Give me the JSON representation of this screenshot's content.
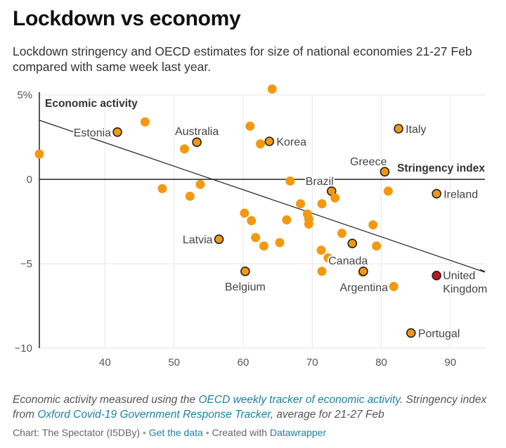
{
  "header": {
    "title": "Lockdown vs economy",
    "subtitle": "Lockdown stringency and OECD estimates for size of national economies 21-27 Feb compared with same week last year."
  },
  "notes": {
    "part1": "Economic activity measured using the ",
    "link1": "OECD weekly tracker of economic activity",
    "part2": ". Stringency index from ",
    "link2": "Oxford Covid-19 Government Response Tracker",
    "part3": ", average for 21-27 Feb"
  },
  "footer": {
    "credit": "Chart: The Spectator (I5DBy)",
    "sep1": "•",
    "get_data": "Get the data",
    "sep2": "•",
    "created_with_prefix": "Created with ",
    "datawrapper": "Datawrapper"
  },
  "colors": {
    "point_fill": "#f29911",
    "highlight_fill": "#c0161c",
    "outline": "#222222",
    "grid": "#e6e6e6",
    "link": "#1d81a2"
  },
  "chart_data": {
    "type": "scatter",
    "title": "Lockdown vs economy",
    "xlabel": "Stringency index",
    "ylabel": "Economic activity",
    "xlim": [
      30.5,
      95
    ],
    "ylim": [
      -10,
      5
    ],
    "xticks": [
      40,
      50,
      60,
      70,
      80,
      90
    ],
    "yticks": [
      {
        "value": 5,
        "label": "5%"
      },
      {
        "value": 0,
        "label": "0"
      },
      {
        "value": -5,
        "label": "−5"
      },
      {
        "value": -10,
        "label": "−10"
      }
    ],
    "trendline": {
      "x": [
        30.5,
        95
      ],
      "y": [
        3.5,
        -5.5
      ]
    },
    "points": [
      {
        "x": 30.5,
        "y": 1.5
      },
      {
        "x": 41.8,
        "y": 2.8,
        "label": "Estonia",
        "outlined": true,
        "label_side": "left"
      },
      {
        "x": 45.8,
        "y": 3.4
      },
      {
        "x": 48.3,
        "y": -0.55
      },
      {
        "x": 51.5,
        "y": 1.8
      },
      {
        "x": 52.3,
        "y": -1.0
      },
      {
        "x": 53.3,
        "y": 2.2,
        "label": "Australia",
        "outlined": true,
        "label_side": "above"
      },
      {
        "x": 53.8,
        "y": -0.3
      },
      {
        "x": 56.5,
        "y": -3.55,
        "label": "Latvia",
        "outlined": true,
        "label_side": "left"
      },
      {
        "x": 60.2,
        "y": -2.0
      },
      {
        "x": 60.3,
        "y": -5.45,
        "label": "Belgium",
        "outlined": true,
        "label_side": "below"
      },
      {
        "x": 61.0,
        "y": 3.15
      },
      {
        "x": 61.2,
        "y": -2.45
      },
      {
        "x": 61.8,
        "y": -3.45
      },
      {
        "x": 62.5,
        "y": 2.1
      },
      {
        "x": 63.0,
        "y": -3.95
      },
      {
        "x": 63.8,
        "y": 2.25,
        "label": "Korea",
        "outlined": true,
        "label_side": "right"
      },
      {
        "x": 64.2,
        "y": 5.35
      },
      {
        "x": 65.3,
        "y": -3.75
      },
      {
        "x": 66.3,
        "y": -2.4
      },
      {
        "x": 66.8,
        "y": -0.1
      },
      {
        "x": 68.3,
        "y": -1.45
      },
      {
        "x": 69.3,
        "y": -2.05
      },
      {
        "x": 69.5,
        "y": -2.35
      },
      {
        "x": 69.5,
        "y": -2.65
      },
      {
        "x": 71.3,
        "y": -4.2
      },
      {
        "x": 71.4,
        "y": -1.45
      },
      {
        "x": 71.4,
        "y": -5.45
      },
      {
        "x": 72.3,
        "y": -4.65
      },
      {
        "x": 72.8,
        "y": -0.7,
        "label": "Brazil",
        "outlined": true,
        "label_side": "above-left"
      },
      {
        "x": 73.3,
        "y": -1.1
      },
      {
        "x": 74.3,
        "y": -3.2
      },
      {
        "x": 75.8,
        "y": -3.8,
        "label": "Canada",
        "outlined": true,
        "label_side": "below-left"
      },
      {
        "x": 77.3,
        "y": -5.5,
        "label": "Argentina",
        "outlined": false,
        "label_side": "below-left-far"
      },
      {
        "x": 77.4,
        "y": -5.45,
        "outlined": true
      },
      {
        "x": 78.8,
        "y": -2.7
      },
      {
        "x": 79.3,
        "y": -3.95
      },
      {
        "x": 80.5,
        "y": 0.45,
        "label": "Greece",
        "outlined": true,
        "label_side": "above-left"
      },
      {
        "x": 81.0,
        "y": -0.7
      },
      {
        "x": 81.8,
        "y": -6.35
      },
      {
        "x": 82.5,
        "y": 3.0,
        "label": "Italy",
        "outlined": true,
        "label_side": "right"
      },
      {
        "x": 84.3,
        "y": -9.1,
        "label": "Portugal",
        "outlined": true,
        "label_side": "right"
      },
      {
        "x": 88.0,
        "y": -0.85,
        "label": "Ireland",
        "outlined": true,
        "label_side": "right"
      },
      {
        "x": 88.0,
        "y": -5.7,
        "label": "United Kingdom",
        "outlined": true,
        "highlight": true,
        "label_side": "right-two-line"
      }
    ]
  }
}
